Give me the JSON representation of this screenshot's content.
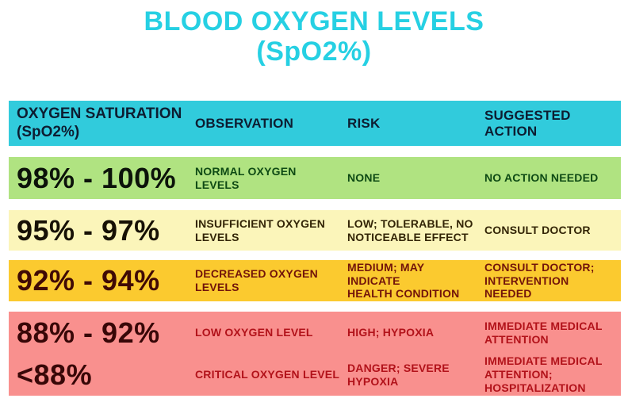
{
  "title": {
    "line1": "BLOOD OXYGEN LEVELS",
    "line2": "(SpO2%)"
  },
  "table": {
    "headers": {
      "saturation": "OXYGEN SATURATION\n(SpO2%)",
      "observation": "OBSERVATION",
      "risk": "RISK",
      "action": "SUGGESTED ACTION"
    },
    "rows": [
      {
        "saturation": "98% - 100%",
        "observation": "NORMAL OXYGEN\nLEVELS",
        "risk": "NONE",
        "action": "NO ACTION NEEDED"
      },
      {
        "saturation": "95% - 97%",
        "observation": "INSUFFICIENT OXYGEN\nLEVELS",
        "risk": "LOW; TOLERABLE, NO\nNOTICEABLE EFFECT",
        "action": "CONSULT DOCTOR"
      },
      {
        "saturation": "92% - 94%",
        "observation": "DECREASED OXYGEN\nLEVELS",
        "risk": "MEDIUM; MAY INDICATE\nHEALTH CONDITION",
        "action": "CONSULT DOCTOR;\nINTERVENTION NEEDED"
      },
      {
        "saturation": "88% - 92%",
        "observation": "LOW OXYGEN LEVEL",
        "risk": "HIGH; HYPOXIA",
        "action": "IMMEDIATE MEDICAL\nATTENTION"
      },
      {
        "saturation": "<88%",
        "observation": "CRITICAL OXYGEN LEVEL",
        "risk": "DANGER; SEVERE\nHYPOXIA",
        "action": "IMMEDIATE MEDICAL\nATTENTION;\nHOSPITALIZATION"
      }
    ]
  },
  "colors": {
    "title_cyan": "#26d0e3",
    "header_bg": "#31cbdc",
    "header_text": "#0d1d31",
    "row_normal_bg": "#b0e381",
    "row_normal_text": "#0e4a14",
    "row_insufficient_bg": "#fbf5ba",
    "row_insufficient_text": "#332506",
    "row_decreased_bg": "#fbca2f",
    "row_decreased_text": "#72140a",
    "row_low_critical_bg": "#f9908e",
    "row_low_critical_text": "#b2121a"
  },
  "chart_data": {
    "type": "table",
    "title": "BLOOD OXYGEN LEVELS (SpO2%)",
    "columns": [
      "OXYGEN SATURATION (SpO2%)",
      "OBSERVATION",
      "RISK",
      "SUGGESTED ACTION"
    ],
    "rows": [
      [
        "98% - 100%",
        "NORMAL OXYGEN LEVELS",
        "NONE",
        "NO ACTION NEEDED"
      ],
      [
        "95% - 97%",
        "INSUFFICIENT OXYGEN LEVELS",
        "LOW; TOLERABLE, NO NOTICEABLE EFFECT",
        "CONSULT DOCTOR"
      ],
      [
        "92% - 94%",
        "DECREASED OXYGEN LEVELS",
        "MEDIUM; MAY INDICATE HEALTH CONDITION",
        "CONSULT DOCTOR; INTERVENTION NEEDED"
      ],
      [
        "88% - 92%",
        "LOW OXYGEN LEVEL",
        "HIGH; HYPOXIA",
        "IMMEDIATE MEDICAL ATTENTION"
      ],
      [
        "<88%",
        "CRITICAL OXYGEN LEVEL",
        "DANGER; SEVERE HYPOXIA",
        "IMMEDIATE MEDICAL ATTENTION; HOSPITALIZATION"
      ]
    ],
    "row_colors": [
      "#b0e381",
      "#fbf5ba",
      "#fbca2f",
      "#f9908e",
      "#f9908e"
    ]
  }
}
